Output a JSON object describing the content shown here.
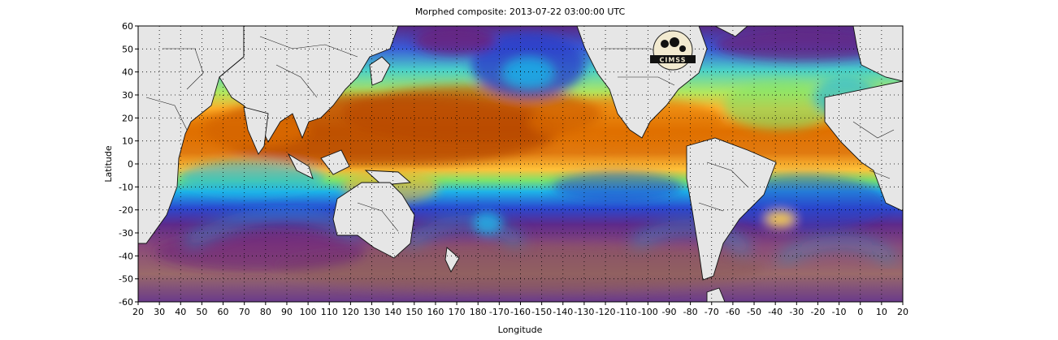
{
  "title": "Morphed composite: 2013-07-22 03:00:00 UTC",
  "map": {
    "xlabel": "Longitude",
    "ylabel": "Latitude",
    "x_ticks": [
      "20",
      "30",
      "40",
      "50",
      "60",
      "70",
      "80",
      "90",
      "100",
      "110",
      "120",
      "130",
      "140",
      "150",
      "160",
      "170",
      "180",
      "-170",
      "-160",
      "-150",
      "-140",
      "-130",
      "-120",
      "-110",
      "-100",
      "-90",
      "-80",
      "-70",
      "-60",
      "-50",
      "-40",
      "-30",
      "-20",
      "-10",
      "0",
      "10",
      "20"
    ],
    "y_ticks": [
      "60",
      "50",
      "40",
      "30",
      "20",
      "10",
      "0",
      "-10",
      "-20",
      "-30",
      "-40",
      "-50",
      "-60"
    ],
    "lon_range": [
      20,
      380
    ],
    "lat_range": [
      -60,
      60
    ],
    "grid": true,
    "logo_text": "CIMSS",
    "logo_position": "top-right"
  },
  "colors": {
    "land": "#e6e6e6",
    "high": "#b34500",
    "mid_high": "#f08a00",
    "mid": "#ffd24a",
    "mid_low": "#7ee36a",
    "low": "#1eb4e8",
    "lower": "#2a3fc8",
    "lowest": "#6a1f7a",
    "dry": "#8a5a5a"
  }
}
